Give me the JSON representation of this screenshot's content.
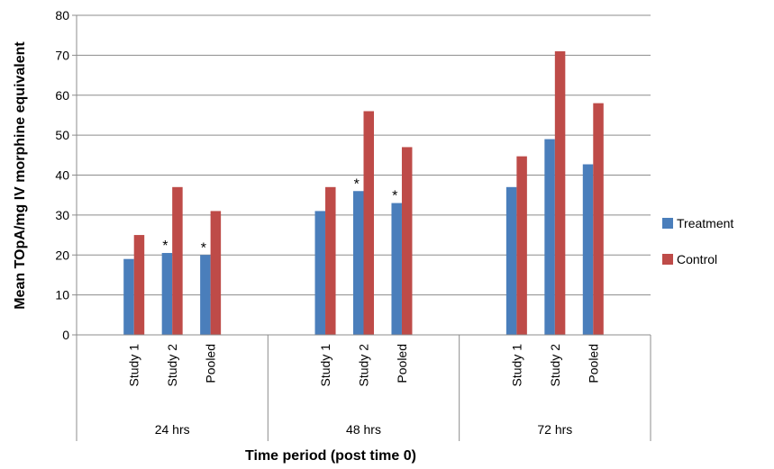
{
  "chart_data": {
    "type": "bar",
    "title": "",
    "xlabel": "Time period (post time 0)",
    "ylabel": "Mean TOpA/mg IV morphine equivalent",
    "ylim": [
      0,
      80
    ],
    "yticks": [
      0,
      10,
      20,
      30,
      40,
      50,
      60,
      70,
      80
    ],
    "grid": "horizontal",
    "legend_position": "right",
    "groups": [
      {
        "label": "24 hrs",
        "categories": [
          "Study 1",
          "Study 2",
          "Pooled"
        ]
      },
      {
        "label": "48 hrs",
        "categories": [
          "Study 1",
          "Study 2",
          "Pooled"
        ]
      },
      {
        "label": "72 hrs",
        "categories": [
          "Study 1",
          "Study 2",
          "Pooled"
        ]
      }
    ],
    "series": [
      {
        "name": "Treatment",
        "color": "#4a7ebb",
        "values": [
          19,
          20.5,
          20,
          31,
          36,
          33,
          37,
          49,
          42.7
        ]
      },
      {
        "name": "Control",
        "color": "#be4b48",
        "values": [
          25,
          37,
          31,
          37,
          56,
          47,
          44.7,
          71,
          58
        ]
      }
    ],
    "annotations": [
      {
        "category_index": 1,
        "series": "Treatment",
        "text": "*"
      },
      {
        "category_index": 2,
        "series": "Treatment",
        "text": "*"
      },
      {
        "category_index": 4,
        "series": "Treatment",
        "text": "*"
      },
      {
        "category_index": 5,
        "series": "Treatment",
        "text": "*"
      }
    ]
  }
}
